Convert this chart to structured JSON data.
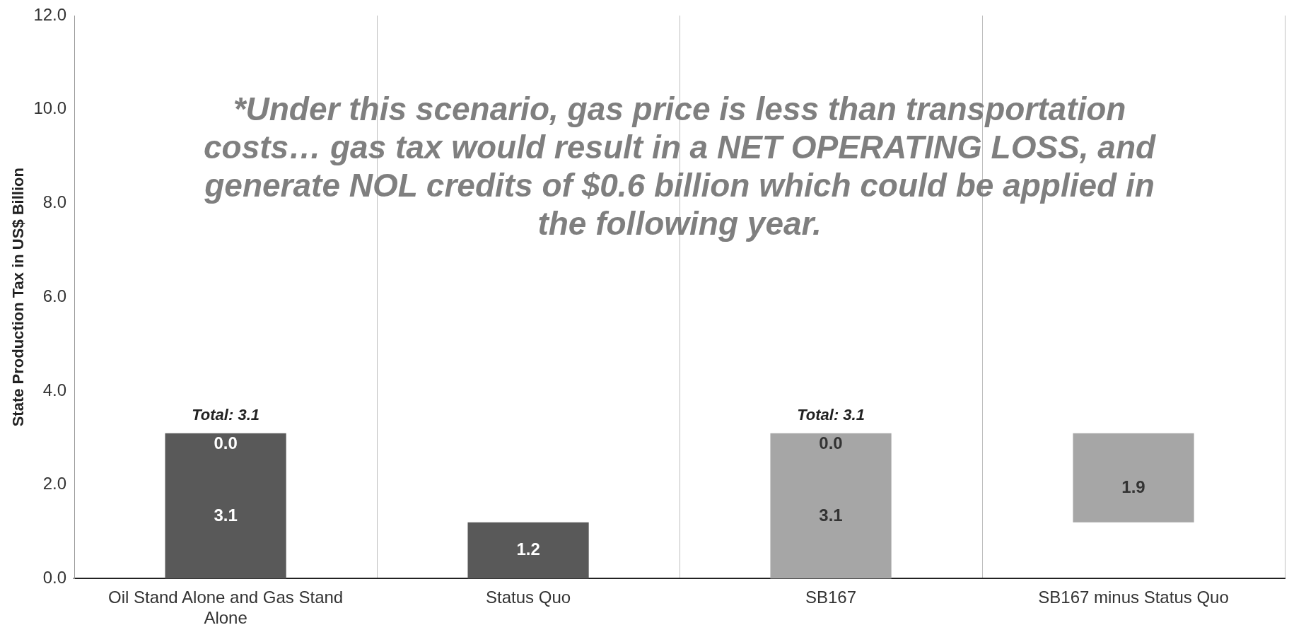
{
  "chart_data": {
    "type": "bar",
    "ylabel": "State Production Tax in US$ Billion",
    "categories": [
      "Oil Stand Alone and Gas Stand Alone",
      "Status Quo",
      "SB167",
      "SB167 minus Status Quo"
    ],
    "base": [
      0,
      0,
      0,
      1.2
    ],
    "colors": [
      "#595959",
      "#595959",
      "#a6a6a6",
      "#a6a6a6"
    ],
    "values": [
      3.1,
      1.2,
      3.1,
      1.9
    ],
    "data_labels": true,
    "totals": [
      "Total: 3.1",
      null,
      "Total: 3.1",
      null
    ],
    "ylim": [
      0,
      12
    ],
    "yticks": [
      {
        "value": 0,
        "label": "0.0"
      },
      {
        "value": 2,
        "label": "2.0"
      },
      {
        "value": 4,
        "label": "4.0"
      },
      {
        "value": 6,
        "label": "6.0"
      },
      {
        "value": 8,
        "label": "8.0"
      },
      {
        "value": 10,
        "label": "10.0"
      },
      {
        "value": 12,
        "label": "12.0"
      }
    ],
    "grid": "x",
    "annotations": [
      "*Under this scenario, gas price is less than transportation costs… gas tax would result in a NET OPERATING LOSS, and generate NOL credits of $0.6 billion which could be applied in the following year.",
      {
        "text": "0.0",
        "x": "Oil Stand Alone and Gas Stand Alone",
        "y": 3.1
      },
      {
        "text": "0.0",
        "x": "SB167",
        "y": 3.1
      }
    ]
  }
}
